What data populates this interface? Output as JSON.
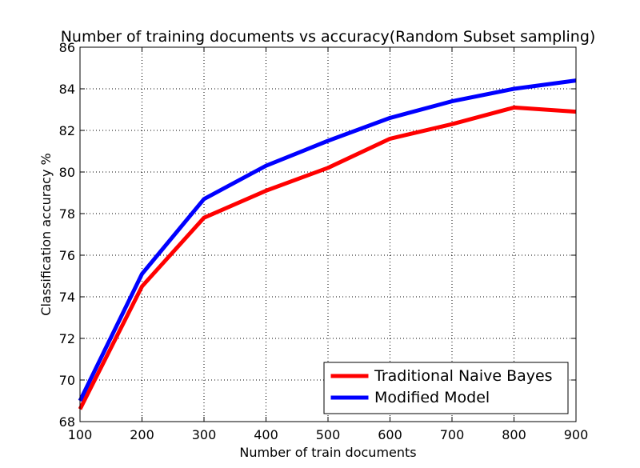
{
  "chart_data": {
    "type": "line",
    "title": "Number of training documents vs accuracy(Random Subset sampling)",
    "xlabel": "Number of train documents",
    "ylabel": "Classification accuracy %",
    "x": [
      100,
      200,
      300,
      400,
      500,
      600,
      700,
      800,
      900
    ],
    "xlim": [
      100,
      900
    ],
    "ylim": [
      68,
      86
    ],
    "xticks": [
      100,
      200,
      300,
      400,
      500,
      600,
      700,
      800,
      900
    ],
    "yticks": [
      68,
      70,
      72,
      74,
      76,
      78,
      80,
      82,
      84,
      86
    ],
    "grid": true,
    "legend_position": "lower-right",
    "series": [
      {
        "name": "Traditional Naive Bayes",
        "color": "#ff0000",
        "values": [
          68.6,
          74.5,
          77.8,
          79.1,
          80.2,
          81.6,
          82.3,
          83.1,
          82.9
        ]
      },
      {
        "name": "Modified Model",
        "color": "#0000ff",
        "values": [
          69.0,
          75.1,
          78.7,
          80.3,
          81.5,
          82.6,
          83.4,
          84.0,
          84.4
        ]
      }
    ]
  }
}
